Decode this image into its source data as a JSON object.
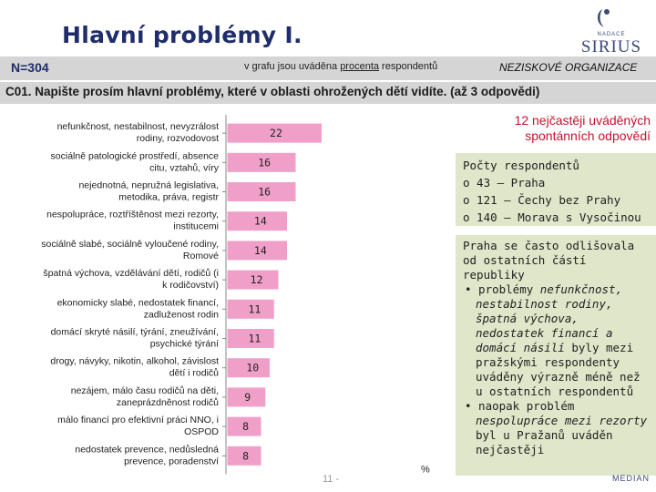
{
  "header": {
    "title": "Hlavní problémy I.",
    "logo_small": "NADACE",
    "logo_big": "SIRIUS"
  },
  "info_bar": {
    "n_label": "N=304",
    "subtitle_pre": "v grafu jsou uváděna ",
    "subtitle_link": "procenta",
    "subtitle_post": " respondentů",
    "org": "NEZISKOVÉ ORGANIZACE"
  },
  "question": "C01. Napište prosím hlavní problémy, které  v oblasti ohrožených dětí vidíte. (až 3 odpovědi)",
  "chart_data": {
    "type": "bar",
    "orientation": "horizontal",
    "unit": "%",
    "xlim": [
      0,
      40
    ],
    "categories": [
      [
        "nefunkčnost, nestabilnost, nevyzrálost",
        "rodiny, rozvodovost"
      ],
      [
        "sociálně patologické prostředí, absence",
        "citu, vztahů, víry"
      ],
      [
        "nejednotná, nepružná legislativa,",
        "metodika, práva, registr"
      ],
      [
        "nespolupráce, roztříštěnost mezi rezorty,",
        "institucemi"
      ],
      [
        "sociálně slabé, sociálně vyloučené rodiny,",
        "Romové"
      ],
      [
        "špatná výchova, vzdělávání dětí, rodičů (i",
        "k rodičovství)"
      ],
      [
        "ekonomicky slabé, nedostatek financí,",
        "zadluženost rodin"
      ],
      [
        "domácí skryté násilí, týrání, zneužívání,",
        "psychické týrání"
      ],
      [
        "drogy, návyky, nikotin, alkohol, závislost",
        "dětí i rodičů"
      ],
      [
        "nezájem, málo času rodičů na děti,",
        "zaneprázdněnost rodičů"
      ],
      [
        "málo financí pro efektivní práci NNO, i",
        "OSPOD"
      ],
      [
        "nedostatek prevence, nedůsledná",
        "prevence, poradenství"
      ]
    ],
    "values": [
      22,
      16,
      16,
      14,
      14,
      12,
      11,
      11,
      10,
      9,
      8,
      8
    ],
    "value_labels": [
      "22",
      "16",
      "16",
      "14",
      "14",
      "12",
      "11",
      "11",
      "10",
      "9",
      "8",
      "8"
    ],
    "bar_color": "#f0a0c8",
    "xlabel": "%",
    "slide_number": "11 -"
  },
  "highlight_title": [
    "12 nejčastěji uváděných",
    "spontánních odpovědí"
  ],
  "counts_box": {
    "heading": "Počty respondentů",
    "items": [
      "o 43 – Praha",
      "o 121 – Čechy bez Prahy",
      "o 140 – Morava s Vysočinou"
    ]
  },
  "praha_box": {
    "intro": "Praha se často odlišovala od ostatních částí republiky",
    "bullet1_pre": "• problémy ",
    "bullet1_em": "nefunkčnost, nestabilnost rodiny, špatná výchova, nedostatek financí a domácí násilí",
    "bullet1_post": " byly mezi pražskými respondenty uváděny výrazně méně než u ostatních respondentů",
    "bullet2_pre": "• naopak problém ",
    "bullet2_em": "nespolupráce mezi rezorty",
    "bullet2_post": " byl u Pražanů uváděn nejčastěji"
  },
  "footer_logo": "MEDIAN"
}
